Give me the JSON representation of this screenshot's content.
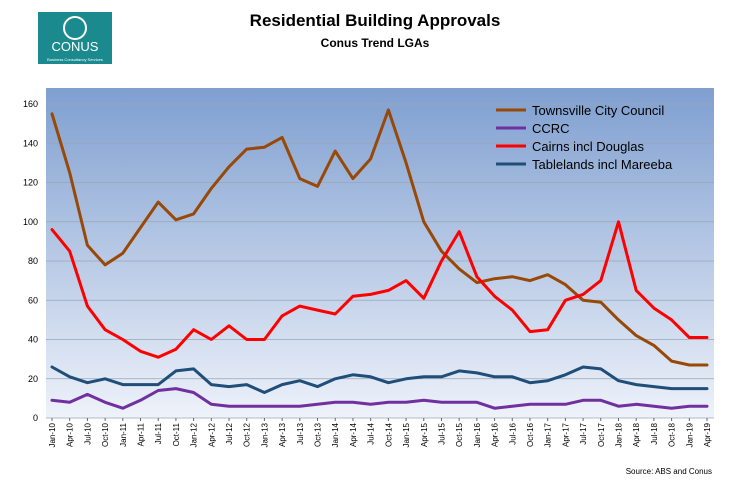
{
  "chart_data": {
    "type": "line",
    "title": "Residential Building Approvals",
    "subtitle": "Conus Trend LGAs",
    "logo": {
      "name": "CONUS",
      "tagline": "Business Consultancy Services"
    },
    "source": "Source: ABS and Conus",
    "categories": [
      "Jan-10",
      "Apr-10",
      "Jul-10",
      "Oct-10",
      "Jan-11",
      "Apr-11",
      "Jul-11",
      "Oct-11",
      "Jan-12",
      "Apr-12",
      "Jul-12",
      "Oct-12",
      "Jan-13",
      "Apr-13",
      "Jul-13",
      "Oct-13",
      "Jan-14",
      "Apr-14",
      "Jul-14",
      "Oct-14",
      "Jan-15",
      "Apr-15",
      "Jul-15",
      "Oct-15",
      "Jan-16",
      "Apr-16",
      "Jul-16",
      "Oct-16",
      "Jan-17",
      "Apr-17",
      "Jul-17",
      "Oct-17",
      "Jan-18",
      "Apr-18",
      "Jul-18",
      "Oct-18",
      "Jan-19",
      "Apr-19"
    ],
    "series": [
      {
        "name": "Townsville City Council",
        "color": "#984807",
        "values": [
          155,
          125,
          88,
          78,
          84,
          97,
          110,
          101,
          104,
          117,
          128,
          137,
          138,
          143,
          122,
          118,
          136,
          122,
          132,
          157,
          130,
          100,
          85,
          76,
          69,
          71,
          72,
          70,
          73,
          68,
          60,
          59,
          50,
          42,
          37,
          29,
          27,
          27
        ]
      },
      {
        "name": "CCRC",
        "color": "#7030a0",
        "values": [
          9,
          8,
          12,
          8,
          5,
          9,
          14,
          15,
          13,
          7,
          6,
          6,
          6,
          6,
          6,
          7,
          8,
          8,
          7,
          8,
          8,
          9,
          8,
          8,
          8,
          5,
          6,
          7,
          7,
          7,
          9,
          9,
          6,
          7,
          6,
          5,
          6,
          6
        ]
      },
      {
        "name": "Cairns incl Douglas",
        "color": "#ff0000",
        "values": [
          96,
          85,
          57,
          45,
          40,
          34,
          31,
          35,
          45,
          40,
          47,
          40,
          40,
          52,
          57,
          55,
          53,
          62,
          63,
          65,
          70,
          61,
          80,
          95,
          72,
          62,
          55,
          44,
          45,
          60,
          63,
          70,
          100,
          65,
          56,
          50,
          41,
          41
        ]
      },
      {
        "name": "Tablelands incl Mareeba",
        "color": "#1f4e79",
        "values": [
          26,
          21,
          18,
          20,
          17,
          17,
          17,
          24,
          25,
          17,
          16,
          17,
          13,
          17,
          19,
          16,
          20,
          22,
          21,
          18,
          20,
          21,
          21,
          24,
          23,
          21,
          21,
          18,
          19,
          22,
          26,
          25,
          19,
          17,
          16,
          15,
          15,
          15
        ]
      }
    ],
    "ylim": [
      0,
      160
    ],
    "yticks": [
      0,
      20,
      40,
      60,
      80,
      100,
      120,
      140,
      160
    ],
    "grid": true,
    "legend": "upper right"
  }
}
